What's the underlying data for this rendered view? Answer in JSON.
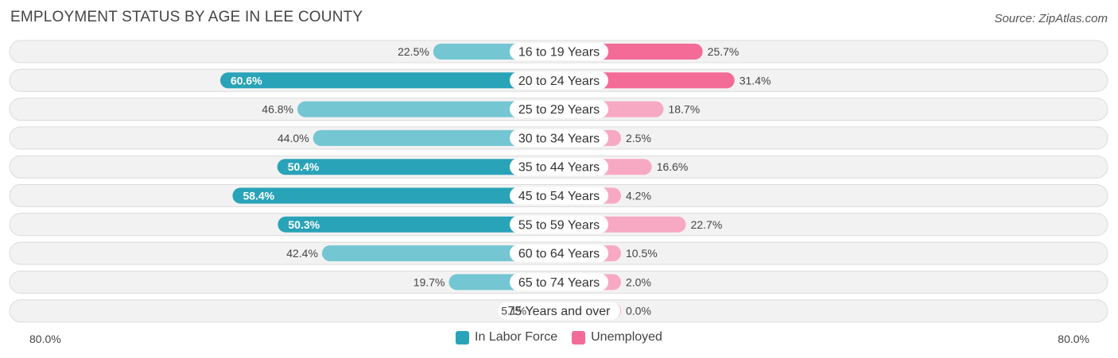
{
  "title": "EMPLOYMENT STATUS BY AGE IN LEE COUNTY",
  "source": "Source: ZipAtlas.com",
  "axis": {
    "left_label": "80.0%",
    "right_label": "80.0%"
  },
  "legend": {
    "labor_label": "In Labor Force",
    "unemployed_label": "Unemployed"
  },
  "colors": {
    "labor_strong": "#29a3b8",
    "labor_light": "#74c6d2",
    "unemployed_strong": "#f46b98",
    "unemployed_light": "#f7a9c3",
    "row_bg": "#f2f2f2",
    "row_border": "#dcdcdc"
  },
  "chart_data": {
    "type": "bar",
    "orientation": "horizontal-diverging",
    "categories": [
      "16 to 19 Years",
      "20 to 24 Years",
      "25 to 29 Years",
      "30 to 34 Years",
      "35 to 44 Years",
      "45 to 54 Years",
      "55 to 59 Years",
      "60 to 64 Years",
      "65 to 74 Years",
      "75 Years and over"
    ],
    "series": [
      {
        "name": "In Labor Force",
        "values": [
          22.5,
          60.6,
          46.8,
          44.0,
          50.4,
          58.4,
          50.3,
          42.4,
          19.7,
          5.1
        ]
      },
      {
        "name": "Unemployed",
        "values": [
          25.7,
          31.4,
          18.7,
          2.5,
          16.6,
          4.2,
          22.7,
          10.5,
          2.0,
          0.0
        ]
      }
    ],
    "value_labels": {
      "labor": [
        "22.5%",
        "60.6%",
        "46.8%",
        "44.0%",
        "50.4%",
        "58.4%",
        "50.3%",
        "42.4%",
        "19.7%",
        "5.1%"
      ],
      "unemployed": [
        "25.7%",
        "31.4%",
        "18.7%",
        "2.5%",
        "16.6%",
        "4.2%",
        "22.7%",
        "10.5%",
        "2.0%",
        "0.0%"
      ]
    },
    "xlim": [
      -80,
      80
    ],
    "legend_position": "bottom-center"
  }
}
